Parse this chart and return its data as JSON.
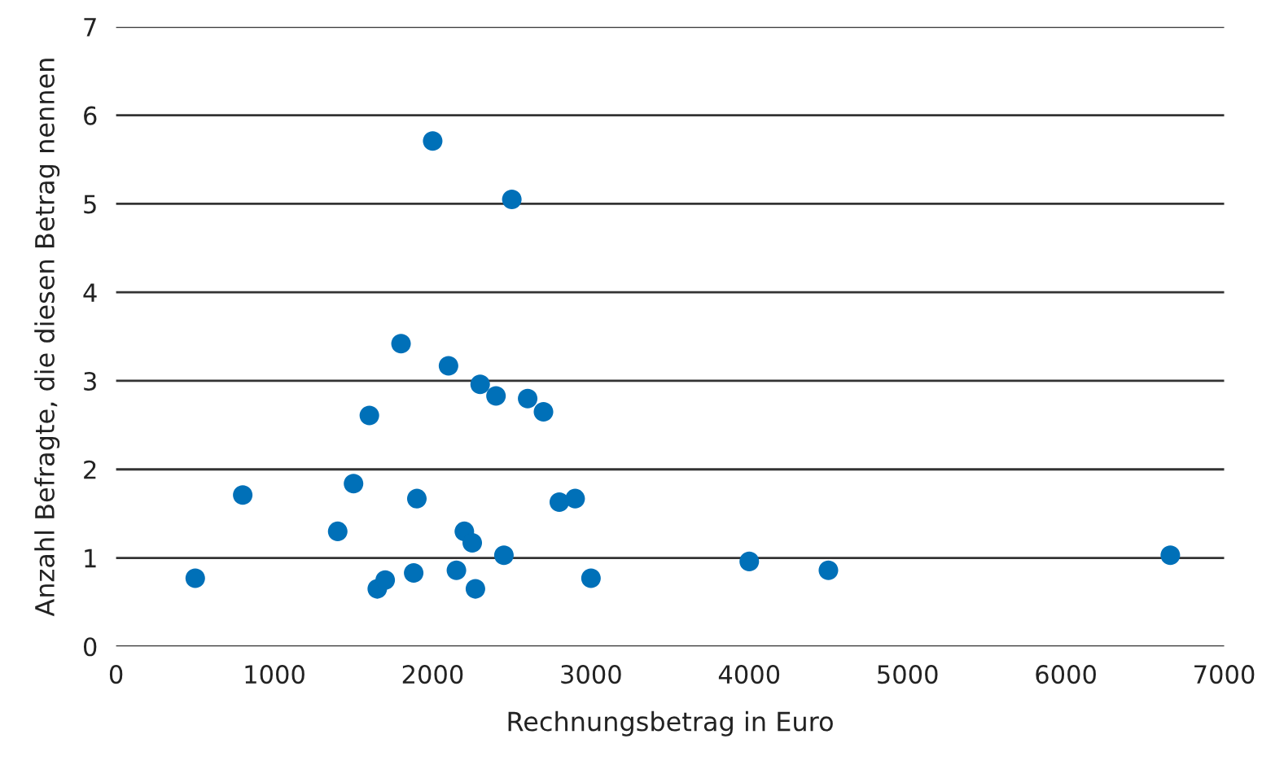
{
  "chart_data": {
    "type": "scatter",
    "xlabel": "Rechnungsbetrag in Euro",
    "ylabel": "Anzahl Befragte, die diesen Betrag nennen",
    "x": [
      2000,
      2500,
      1800,
      2100,
      2300,
      2400,
      2600,
      2700,
      1600,
      800,
      1500,
      1900,
      2800,
      2900,
      1400,
      2200,
      2250,
      2450,
      500,
      1650,
      1700,
      1880,
      2150,
      2270,
      3000,
      4000,
      4500,
      6660
    ],
    "series": [
      {
        "color": "#0070b8",
        "values": [
          5.71,
          5.05,
          3.42,
          3.17,
          2.96,
          2.83,
          2.8,
          2.65,
          2.61,
          1.71,
          1.84,
          1.67,
          1.63,
          1.67,
          1.3,
          1.3,
          1.17,
          1.03,
          0.77,
          0.65,
          0.75,
          0.83,
          0.86,
          0.65,
          0.77,
          0.96,
          0.86,
          1.03
        ]
      }
    ],
    "xlim": [
      0,
      7000
    ],
    "xticks": [
      0,
      1000,
      2000,
      3000,
      4000,
      5000,
      6000,
      7000
    ],
    "ylim": [
      0,
      7
    ],
    "yticks": [
      0,
      1,
      2,
      3,
      4,
      5,
      6,
      7
    ],
    "grid": "y",
    "marker": "circle",
    "legend": false
  }
}
